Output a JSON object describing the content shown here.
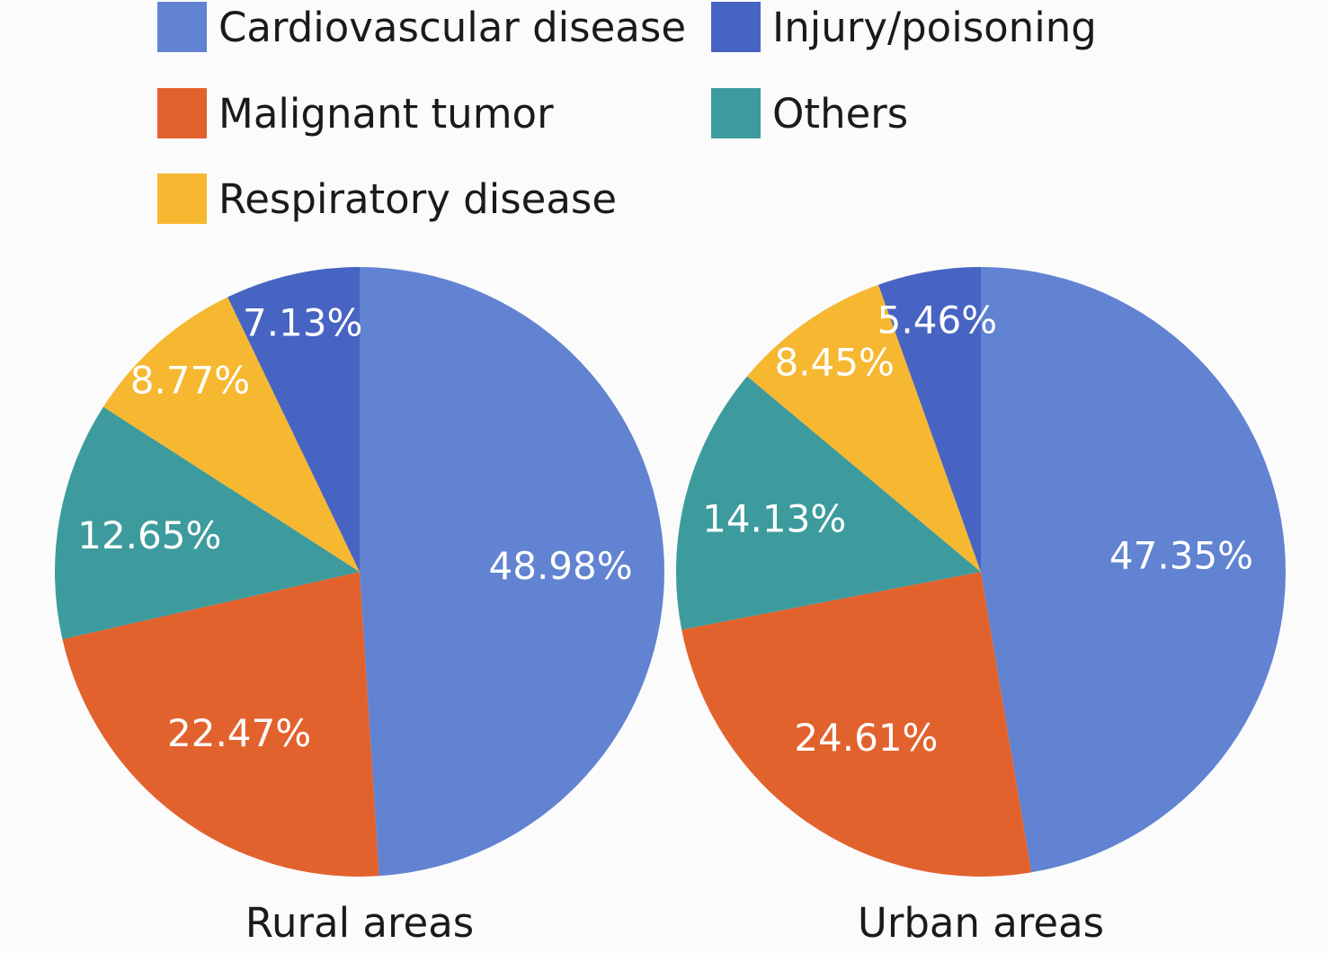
{
  "chart_data": [
    {
      "type": "pie",
      "caption": "Rural areas",
      "slices": [
        {
          "category": "Cardiovascular disease",
          "value": 48.98,
          "label": "48.98%"
        },
        {
          "category": "Malignant tumor",
          "value": 22.47,
          "label": "22.47%"
        },
        {
          "category": "Others",
          "value": 12.65,
          "label": "12.65%"
        },
        {
          "category": "Respiratory disease",
          "value": 8.77,
          "label": "8.77%"
        },
        {
          "category": "Injury/poisoning",
          "value": 7.13,
          "label": "7.13%"
        }
      ]
    },
    {
      "type": "pie",
      "caption": "Urban areas",
      "slices": [
        {
          "category": "Cardiovascular disease",
          "value": 47.35,
          "label": "47.35%"
        },
        {
          "category": "Malignant tumor",
          "value": 24.61,
          "label": "24.61%"
        },
        {
          "category": "Others",
          "value": 14.13,
          "label": "14.13%"
        },
        {
          "category": "Respiratory disease",
          "value": 8.45,
          "label": "8.45%"
        },
        {
          "category": "Injury/poisoning",
          "value": 5.46,
          "label": "5.46%"
        }
      ]
    }
  ],
  "legend": {
    "placement": "top",
    "items": [
      {
        "name": "Cardiovascular disease",
        "color": "#6183d1"
      },
      {
        "name": "Injury/poisoning",
        "color": "#4864c2"
      },
      {
        "name": "Malignant tumor",
        "color": "#e2622e"
      },
      {
        "name": "Others",
        "color": "#3d9b9d"
      },
      {
        "name": "Respiratory disease",
        "color": "#f6b731"
      }
    ]
  }
}
